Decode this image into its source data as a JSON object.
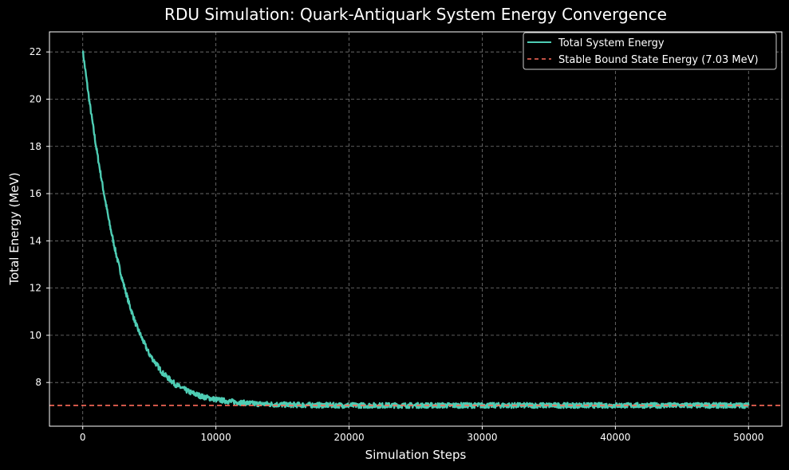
{
  "chart_data": {
    "type": "line",
    "title": "RDU Simulation: Quark-Antiquark System Energy Convergence",
    "xlabel": "Simulation Steps",
    "ylabel": "Total Energy (MeV)",
    "xlim": [
      -2500,
      52500
    ],
    "ylim": [
      6.15,
      22.85
    ],
    "xticks": [
      0,
      10000,
      20000,
      30000,
      40000,
      50000
    ],
    "xtick_labels": [
      "0",
      "10000",
      "20000",
      "30000",
      "40000",
      "50000"
    ],
    "yticks": [
      8,
      10,
      12,
      14,
      16,
      18,
      20,
      22
    ],
    "ytick_labels": [
      "8",
      "10",
      "12",
      "14",
      "16",
      "18",
      "20",
      "22"
    ],
    "grid": true,
    "legend_position": "top-right",
    "series": [
      {
        "name": "Total System Energy",
        "color": "#4ecdb4",
        "style": "solid",
        "x": [
          0,
          500,
          1000,
          1500,
          2000,
          2500,
          3000,
          3500,
          4000,
          4500,
          5000,
          6000,
          7000,
          8000,
          9000,
          10000,
          11000,
          12000,
          13000,
          14000,
          15000,
          17500,
          20000,
          25000,
          30000,
          35000,
          40000,
          45000,
          50000
        ],
        "y": [
          22.05,
          19.9,
          18.0,
          16.3,
          14.75,
          13.45,
          12.3,
          11.3,
          10.45,
          9.8,
          9.2,
          8.4,
          7.9,
          7.6,
          7.4,
          7.28,
          7.2,
          7.14,
          7.1,
          7.08,
          7.06,
          7.04,
          7.03,
          7.03,
          7.03,
          7.03,
          7.03,
          7.03,
          7.03
        ]
      },
      {
        "name": "Stable Bound State Energy (7.03 MeV)",
        "color": "#ff6b5a",
        "style": "dashed",
        "value": 7.03
      }
    ]
  }
}
